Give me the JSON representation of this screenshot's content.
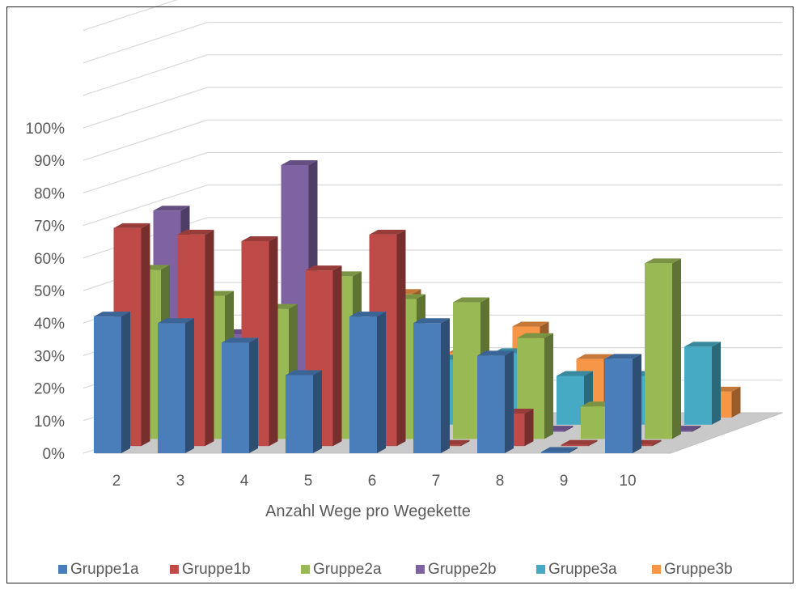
{
  "chart_data": {
    "type": "bar",
    "variant": "3d-column",
    "title": "",
    "xlabel": "Anzahl Wege pro Wegekette",
    "ylabel": "",
    "y_ticks": [
      "0%",
      "10%",
      "20%",
      "30%",
      "40%",
      "50%",
      "60%",
      "70%",
      "80%",
      "90%",
      "100%"
    ],
    "ylim": [
      0,
      100
    ],
    "categories": [
      "2",
      "3",
      "4",
      "5",
      "6",
      "7",
      "8",
      "9",
      "10"
    ],
    "legend_position": "bottom",
    "grid": true,
    "series": [
      {
        "name": "Gruppe1a",
        "color": "#4a7ebb",
        "values": [
          42,
          40,
          34,
          24,
          42,
          40,
          30,
          0,
          29
        ]
      },
      {
        "name": "Gruppe1b",
        "color": "#be4b48",
        "values": [
          67,
          65,
          63,
          54,
          65,
          0,
          10,
          0,
          0
        ]
      },
      {
        "name": "Gruppe2a",
        "color": "#98b954",
        "values": [
          52,
          44,
          40,
          50,
          43,
          42,
          31,
          10,
          54
        ]
      },
      {
        "name": "Gruppe2b",
        "color": "#7e62a1",
        "values": [
          68,
          30,
          82,
          28,
          25,
          0,
          0,
          0,
          0
        ]
      },
      {
        "name": "Gruppe3a",
        "color": "#46aac5",
        "values": [
          20,
          20,
          20,
          20,
          20,
          22,
          15,
          15,
          24
        ]
      },
      {
        "name": "Gruppe3b",
        "color": "#f79646",
        "values": [
          36,
          28,
          20,
          38,
          20,
          28,
          18,
          8,
          8
        ]
      }
    ]
  }
}
